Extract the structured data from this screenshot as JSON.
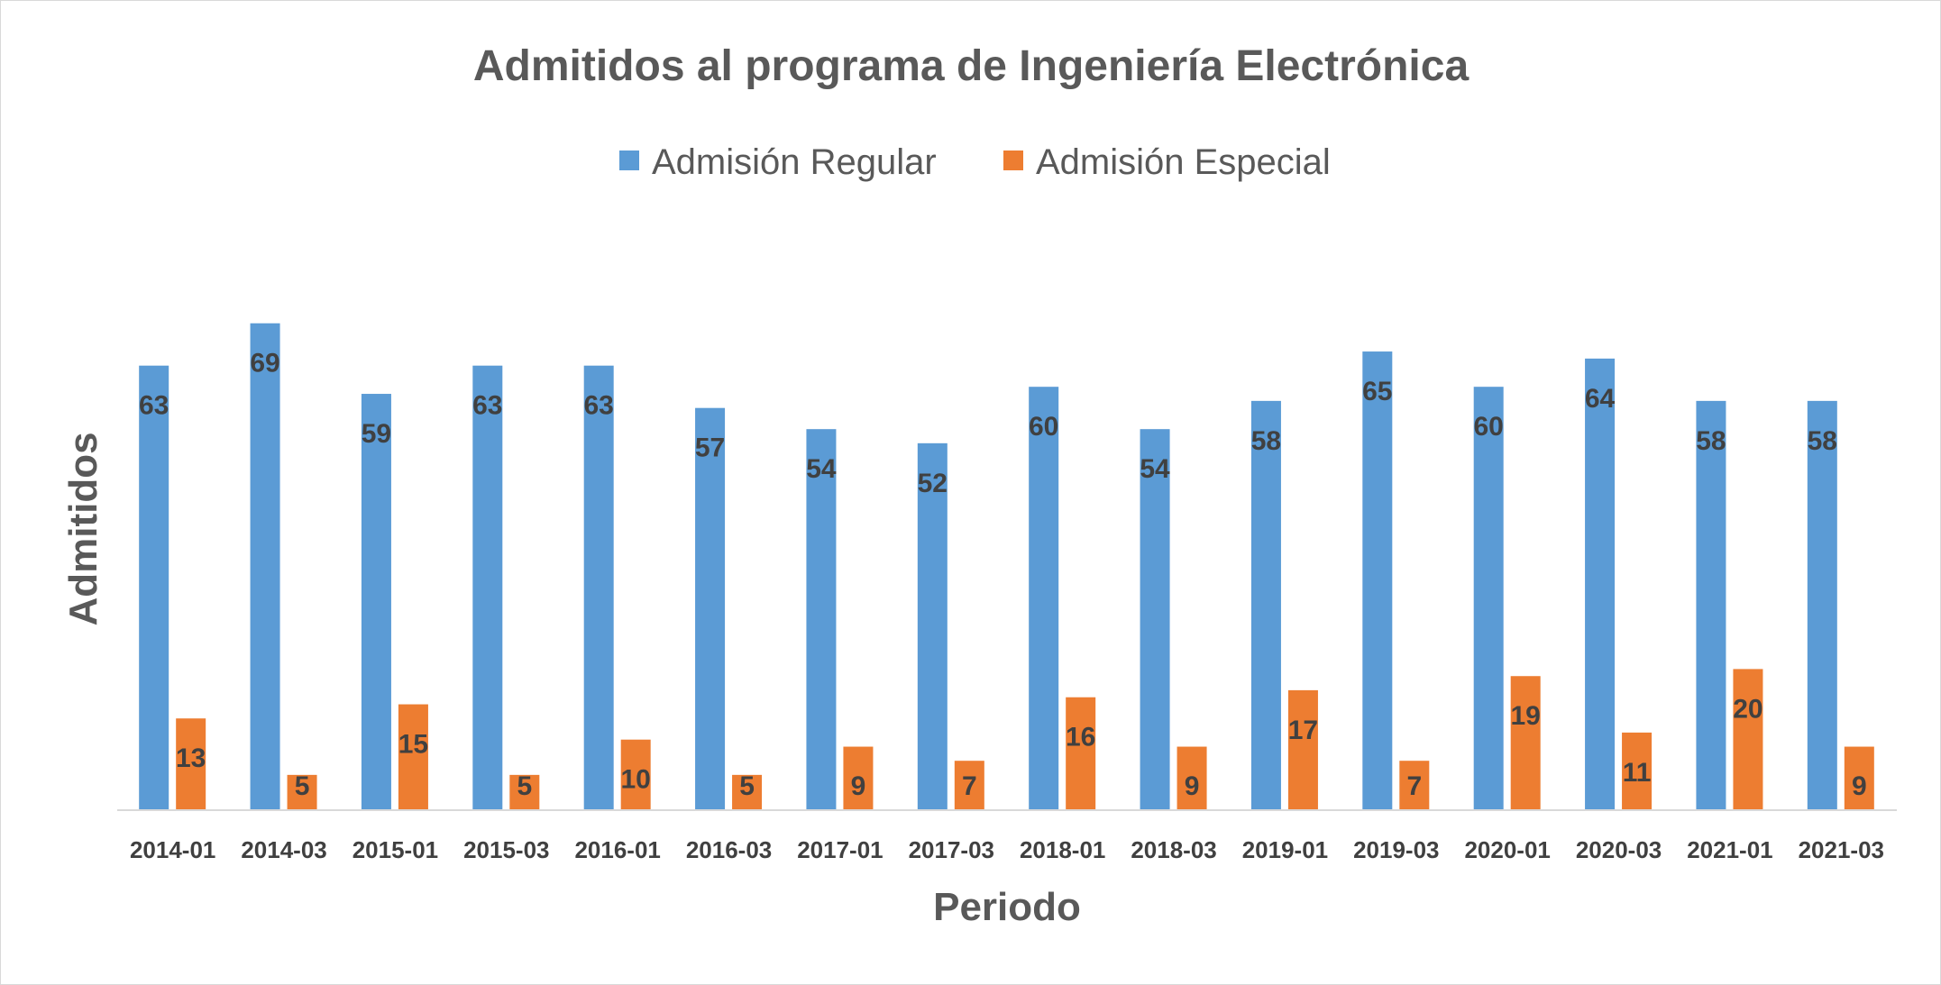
{
  "chart_data": {
    "type": "bar",
    "title": "Admitidos al programa de Ingeniería Electrónica",
    "xlabel": "Periodo",
    "ylabel": "Admitidos",
    "categories": [
      "2014-01",
      "2014-03",
      "2015-01",
      "2015-03",
      "2016-01",
      "2016-03",
      "2017-01",
      "2017-03",
      "2018-01",
      "2018-03",
      "2019-01",
      "2019-03",
      "2020-01",
      "2020-03",
      "2021-01",
      "2021-03"
    ],
    "series": [
      {
        "name": "Admisión Regular",
        "color": "#5b9bd5",
        "values": [
          63,
          69,
          59,
          63,
          63,
          57,
          54,
          52,
          60,
          54,
          58,
          65,
          60,
          64,
          58,
          58
        ]
      },
      {
        "name": "Admisión Especial",
        "color": "#ed7d31",
        "values": [
          13,
          5,
          15,
          5,
          10,
          5,
          9,
          7,
          16,
          9,
          17,
          7,
          19,
          11,
          20,
          9
        ]
      }
    ],
    "ylim": [
      0,
      70
    ],
    "grid": false,
    "legend_position": "top"
  }
}
